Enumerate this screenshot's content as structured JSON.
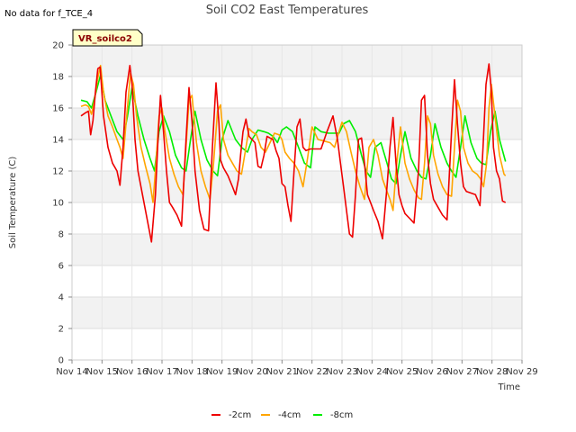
{
  "page": {
    "notice": "No data for f_TCE_4",
    "station_label": "VR_soilco2"
  },
  "chart_data": {
    "type": "line",
    "title": "Soil CO2 East Temperatures",
    "xlabel": "Time",
    "ylabel": "Soil Temperature (C)",
    "xlim": [
      14,
      29
    ],
    "ylim": [
      0,
      20
    ],
    "x_ticks": [
      14,
      15,
      16,
      17,
      18,
      19,
      20,
      21,
      22,
      23,
      24,
      25,
      26,
      27,
      28,
      29
    ],
    "x_tick_labels": [
      "Nov 14",
      "Nov 15",
      "Nov 16",
      "Nov 17",
      "Nov 18",
      "Nov 19",
      "Nov 20",
      "Nov 21",
      "Nov 22",
      "Nov 23",
      "Nov 24",
      "Nov 25",
      "Nov 26",
      "Nov 27",
      "Nov 28",
      "Nov 29"
    ],
    "y_ticks": [
      0,
      2,
      4,
      6,
      8,
      10,
      12,
      14,
      16,
      18,
      20
    ],
    "grid": true,
    "legend_position": "bottom-center",
    "series": [
      {
        "name": "-2cm",
        "color": "#ee0000",
        "x": [
          14.3,
          14.45,
          14.55,
          14.62,
          14.7,
          14.78,
          14.86,
          14.94,
          15.05,
          15.2,
          15.35,
          15.5,
          15.6,
          15.7,
          15.8,
          15.93,
          16.0,
          16.1,
          16.2,
          16.35,
          16.5,
          16.65,
          16.78,
          16.88,
          16.95,
          17.05,
          17.15,
          17.25,
          17.35,
          17.5,
          17.65,
          17.8,
          17.9,
          18.0,
          18.1,
          18.25,
          18.4,
          18.55,
          18.68,
          18.8,
          18.9,
          18.95,
          19.05,
          19.2,
          19.35,
          19.45,
          19.55,
          19.62,
          19.7,
          19.8,
          19.9,
          20.0,
          20.1,
          20.2,
          20.3,
          20.4,
          20.5,
          20.6,
          20.7,
          20.8,
          20.9,
          21.0,
          21.1,
          21.2,
          21.3,
          21.4,
          21.5,
          21.6,
          21.7,
          21.8,
          21.95,
          22.1,
          22.3,
          22.5,
          22.7,
          22.85,
          22.95,
          23.05,
          23.15,
          23.25,
          23.35,
          23.45,
          23.55,
          23.65,
          23.75,
          23.85,
          23.95,
          24.05,
          24.2,
          24.35,
          24.5,
          24.6,
          24.7,
          24.8,
          24.9,
          25.0,
          25.1,
          25.25,
          25.4,
          25.55,
          25.65,
          25.75,
          25.85,
          25.95,
          26.05,
          26.2,
          26.35,
          26.5,
          26.65,
          26.75,
          26.85,
          26.95,
          27.05,
          27.15,
          27.3,
          27.45,
          27.6,
          27.7,
          27.8,
          27.9,
          27.98,
          28.05,
          28.15,
          28.25,
          28.35,
          28.45
        ],
        "values": [
          15.5,
          15.7,
          15.8,
          14.3,
          15.2,
          17.0,
          18.5,
          18.6,
          15.5,
          13.5,
          12.5,
          12.0,
          11.1,
          13.5,
          17.0,
          18.7,
          17.5,
          14.0,
          12.0,
          10.5,
          9.0,
          7.5,
          10.5,
          14.5,
          16.8,
          14.5,
          12.0,
          10.0,
          9.7,
          9.2,
          8.5,
          14.0,
          17.3,
          15.2,
          12.0,
          9.5,
          8.3,
          8.2,
          13.5,
          17.6,
          15.0,
          12.7,
          12.2,
          11.7,
          11.0,
          10.5,
          11.5,
          13.0,
          14.5,
          15.3,
          14.2,
          14.0,
          13.8,
          12.3,
          12.2,
          13.0,
          14.2,
          14.1,
          14.0,
          13.3,
          12.8,
          11.2,
          11.0,
          9.8,
          8.8,
          12.0,
          14.8,
          15.3,
          13.5,
          13.3,
          13.4,
          13.4,
          13.4,
          14.5,
          15.5,
          14.0,
          12.5,
          11.0,
          9.5,
          8.0,
          7.8,
          10.5,
          14.0,
          14.1,
          12.5,
          10.5,
          10.0,
          9.5,
          8.8,
          7.7,
          11.0,
          13.5,
          15.4,
          12.5,
          10.5,
          9.8,
          9.3,
          9.0,
          8.7,
          12.0,
          16.5,
          16.8,
          13.0,
          11.2,
          10.2,
          9.7,
          9.2,
          8.9,
          14.5,
          17.8,
          15.0,
          12.5,
          11.0,
          10.7,
          10.6,
          10.5,
          9.8,
          13.5,
          17.5,
          18.8,
          17.0,
          13.5,
          12.0,
          11.5,
          10.1,
          10.0
        ]
      },
      {
        "name": "-4cm",
        "color": "#ffa500",
        "x": [
          14.3,
          14.45,
          14.55,
          14.65,
          14.75,
          14.85,
          14.95,
          15.05,
          15.2,
          15.35,
          15.5,
          15.6,
          15.7,
          15.8,
          15.95,
          16.05,
          16.15,
          16.3,
          16.45,
          16.6,
          16.7,
          16.8,
          16.9,
          17.0,
          17.1,
          17.25,
          17.4,
          17.55,
          17.7,
          17.8,
          17.9,
          18.0,
          18.15,
          18.3,
          18.45,
          18.6,
          18.72,
          18.85,
          18.95,
          19.05,
          19.2,
          19.35,
          19.5,
          19.65,
          19.8,
          19.9,
          20.0,
          20.15,
          20.3,
          20.45,
          20.6,
          20.75,
          20.9,
          21.0,
          21.1,
          21.25,
          21.4,
          21.55,
          21.7,
          21.85,
          22.0,
          22.2,
          22.4,
          22.6,
          22.75,
          22.9,
          23.0,
          23.15,
          23.3,
          23.45,
          23.6,
          23.75,
          23.9,
          24.05,
          24.2,
          24.35,
          24.5,
          24.6,
          24.7,
          24.8,
          24.95,
          25.1,
          25.25,
          25.4,
          25.55,
          25.65,
          25.75,
          25.85,
          25.95,
          26.05,
          26.2,
          26.35,
          26.5,
          26.65,
          26.75,
          26.85,
          26.95,
          27.05,
          27.2,
          27.35,
          27.5,
          27.62,
          27.72,
          27.82,
          27.9,
          27.98,
          28.1,
          28.25,
          28.4,
          28.45
        ],
        "values": [
          16.1,
          16.2,
          16.1,
          15.6,
          16.5,
          17.8,
          18.7,
          17.0,
          15.5,
          14.8,
          14.0,
          13.5,
          12.8,
          15.0,
          18.2,
          17.5,
          15.5,
          13.5,
          12.3,
          11.2,
          10.0,
          12.5,
          15.5,
          16.0,
          14.5,
          12.8,
          11.8,
          11.0,
          10.5,
          13.5,
          16.5,
          16.8,
          13.8,
          12.0,
          11.0,
          10.2,
          12.5,
          15.8,
          16.2,
          14.0,
          13.0,
          12.5,
          12.0,
          11.8,
          13.5,
          14.7,
          14.5,
          14.3,
          13.5,
          13.2,
          13.8,
          14.4,
          14.3,
          14.0,
          13.2,
          12.8,
          12.5,
          12.0,
          11.0,
          12.8,
          14.8,
          14.0,
          13.9,
          13.8,
          13.5,
          14.5,
          15.1,
          14.5,
          13.2,
          12.0,
          11.0,
          10.2,
          13.5,
          14.0,
          13.0,
          11.5,
          10.7,
          10.2,
          9.5,
          12.0,
          14.8,
          12.5,
          11.5,
          10.8,
          10.3,
          10.2,
          12.5,
          15.5,
          15.0,
          13.0,
          11.8,
          11.0,
          10.5,
          10.4,
          13.5,
          16.5,
          15.8,
          13.5,
          12.5,
          12.0,
          11.8,
          11.5,
          11.0,
          12.5,
          16.0,
          17.5,
          15.5,
          13.0,
          11.8,
          11.7
        ]
      },
      {
        "name": "-8cm",
        "color": "#00ee00",
        "x": [
          14.3,
          14.5,
          14.65,
          14.8,
          14.95,
          15.1,
          15.3,
          15.5,
          15.7,
          15.85,
          16.0,
          16.2,
          16.4,
          16.6,
          16.75,
          16.9,
          17.05,
          17.25,
          17.45,
          17.65,
          17.8,
          17.95,
          18.1,
          18.3,
          18.5,
          18.7,
          18.85,
          19.0,
          19.2,
          19.45,
          19.65,
          19.85,
          20.0,
          20.2,
          20.4,
          20.55,
          20.7,
          20.85,
          21.0,
          21.15,
          21.35,
          21.55,
          21.75,
          21.95,
          22.1,
          22.3,
          22.55,
          22.75,
          22.9,
          23.05,
          23.25,
          23.45,
          23.65,
          23.8,
          23.95,
          24.1,
          24.3,
          24.5,
          24.65,
          24.8,
          24.95,
          25.1,
          25.3,
          25.5,
          25.65,
          25.8,
          25.95,
          26.1,
          26.3,
          26.5,
          26.65,
          26.8,
          26.95,
          27.1,
          27.3,
          27.5,
          27.65,
          27.8,
          27.95,
          28.1,
          28.25,
          28.45
        ],
        "values": [
          16.5,
          16.4,
          16.0,
          17.0,
          18.1,
          16.5,
          15.5,
          14.5,
          14.0,
          15.5,
          17.3,
          15.5,
          14.0,
          12.8,
          12.0,
          14.5,
          15.5,
          14.5,
          13.0,
          12.2,
          12.0,
          14.0,
          15.8,
          14.0,
          12.7,
          12.0,
          11.7,
          14.0,
          15.2,
          14.0,
          13.5,
          13.2,
          14.0,
          14.6,
          14.5,
          14.4,
          14.2,
          13.8,
          14.6,
          14.8,
          14.5,
          13.5,
          12.5,
          12.2,
          14.8,
          14.5,
          14.4,
          14.4,
          14.4,
          15.0,
          15.2,
          14.5,
          13.0,
          12.0,
          11.6,
          13.5,
          13.8,
          12.5,
          11.5,
          11.2,
          13.0,
          14.5,
          12.8,
          12.0,
          11.6,
          11.5,
          13.0,
          15.0,
          13.5,
          12.5,
          12.0,
          11.6,
          13.5,
          15.5,
          13.8,
          12.8,
          12.5,
          12.4,
          14.5,
          15.8,
          14.0,
          12.6
        ]
      }
    ]
  }
}
